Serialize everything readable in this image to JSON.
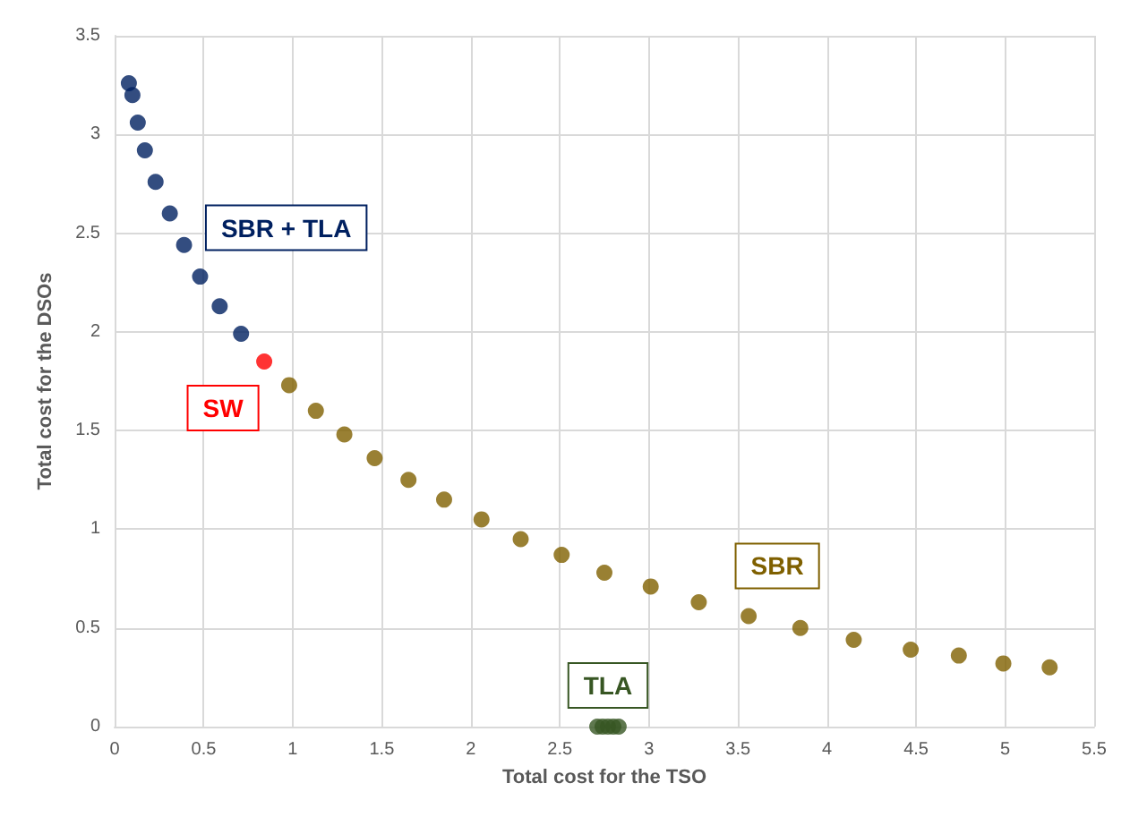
{
  "chart_data": {
    "type": "scatter",
    "xlabel": "Total cost for the TSO",
    "ylabel": "Total cost for the DSOs",
    "xlim": [
      0,
      5.5
    ],
    "xticks": [
      0,
      0.5,
      1,
      1.5,
      2,
      2.5,
      3,
      3.5,
      4,
      4.5,
      5,
      5.5
    ],
    "ylim": [
      0,
      3.5
    ],
    "yticks": [
      0,
      0.5,
      1,
      1.5,
      2,
      2.5,
      3,
      3.5
    ],
    "grid": true,
    "legend": false,
    "marker": "circle",
    "series": [
      {
        "name": "SBR + TLA",
        "color": "#002060",
        "x": [
          0.08,
          0.1,
          0.13,
          0.17,
          0.23,
          0.31,
          0.39,
          0.48,
          0.59,
          0.71
        ],
        "values": [
          3.26,
          3.2,
          3.06,
          2.92,
          2.76,
          2.6,
          2.44,
          2.28,
          2.13,
          1.99
        ]
      },
      {
        "name": "SW",
        "color": "#ff0000",
        "x": [
          0.84
        ],
        "values": [
          1.85
        ]
      },
      {
        "name": "SBR",
        "color": "#7f6000",
        "x": [
          0.98,
          1.13,
          1.29,
          1.46,
          1.65,
          1.85,
          2.06,
          2.28,
          2.51,
          2.75,
          3.01,
          3.28,
          3.56,
          3.85,
          4.15,
          4.47,
          4.74,
          4.99,
          5.25
        ],
        "values": [
          1.73,
          1.6,
          1.48,
          1.36,
          1.25,
          1.15,
          1.05,
          0.95,
          0.87,
          0.78,
          0.71,
          0.63,
          0.56,
          0.5,
          0.44,
          0.39,
          0.36,
          0.32,
          0.3
        ]
      },
      {
        "name": "TLA",
        "color": "#375623",
        "x": [
          2.71,
          2.74,
          2.77,
          2.8,
          2.83
        ],
        "values": [
          0,
          0,
          0,
          0,
          0
        ]
      }
    ]
  }
}
